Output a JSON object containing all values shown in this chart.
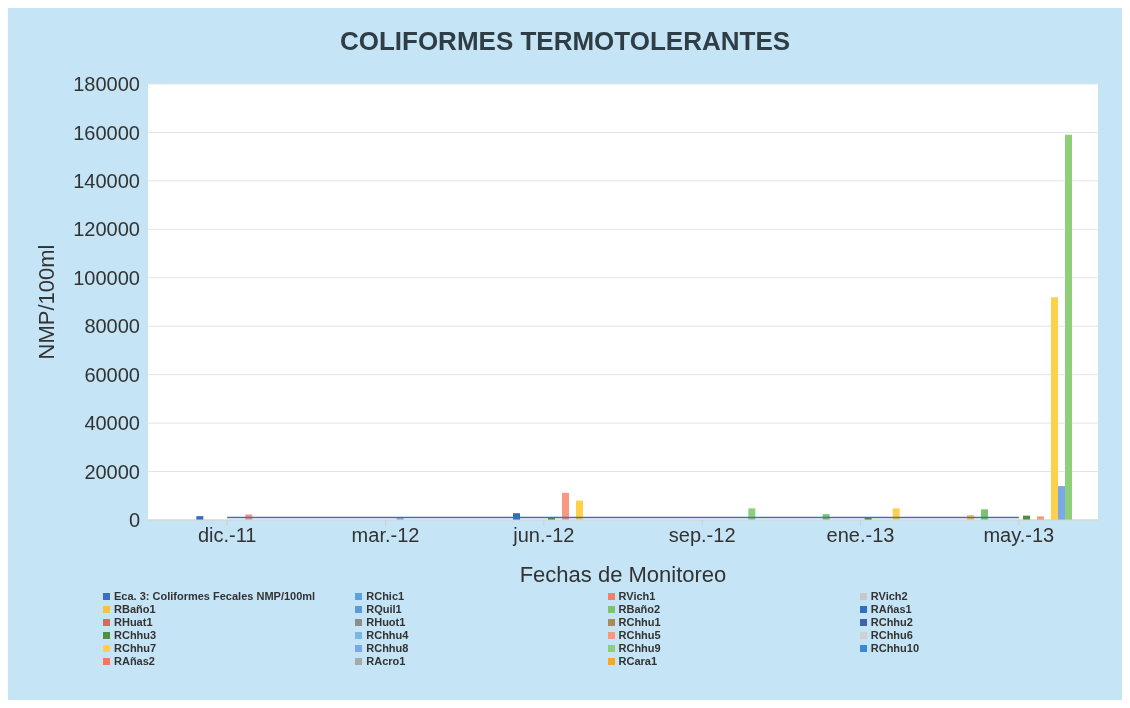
{
  "chart_data": {
    "type": "bar",
    "title": "COLIFORMES TERMOTOLERANTES",
    "xlabel": "Fechas de Monitoreo",
    "ylabel": "NMP/100ml",
    "categories": [
      "dic.-11",
      "mar.-12",
      "jun.-12",
      "sep.-12",
      "ene.-13",
      "may.-13"
    ],
    "ylim": [
      0,
      180000
    ],
    "yticks": [
      0,
      20000,
      40000,
      60000,
      80000,
      100000,
      120000,
      140000,
      160000,
      180000
    ],
    "grid": "y",
    "legend": "bottom",
    "marker": "none",
    "series": [
      {
        "name": "Eca. 3: Coliformes Fecales NMP/100ml",
        "type": "line",
        "color": "#3a6fc4",
        "values": [
          1000,
          1000,
          1000,
          1000,
          1000,
          1000
        ]
      },
      {
        "name": "RChic1",
        "color": "#5ba3e0",
        "values": [
          null,
          null,
          null,
          null,
          null,
          null
        ]
      },
      {
        "name": "RVich1",
        "color": "#f0826a",
        "values": [
          null,
          null,
          null,
          null,
          null,
          null
        ]
      },
      {
        "name": "RVich2",
        "color": "#c8c8c8",
        "values": [
          null,
          null,
          null,
          null,
          null,
          null
        ]
      },
      {
        "name": "RBaño1",
        "color": "#f5c342",
        "values": [
          null,
          null,
          null,
          null,
          null,
          2000
        ]
      },
      {
        "name": "RQuil1",
        "color": "#5b9bd5",
        "values": [
          null,
          null,
          null,
          null,
          null,
          null
        ]
      },
      {
        "name": "RBaño2",
        "color": "#7cc36a",
        "values": [
          null,
          null,
          null,
          null,
          2400,
          4400
        ]
      },
      {
        "name": "RAñas1",
        "color": "#2f6fbf",
        "values": [
          1600,
          null,
          2800,
          null,
          null,
          null
        ]
      },
      {
        "name": "RHuat1",
        "color": "#d96a5a",
        "values": [
          null,
          null,
          null,
          null,
          null,
          null
        ]
      },
      {
        "name": "RHuot1",
        "color": "#8c8c8c",
        "values": [
          null,
          null,
          null,
          null,
          null,
          null
        ]
      },
      {
        "name": "RChhu1",
        "color": "#b08a4a",
        "values": [
          null,
          null,
          null,
          null,
          null,
          null
        ]
      },
      {
        "name": "RChhu2",
        "color": "#3f63a8",
        "values": [
          null,
          null,
          null,
          null,
          null,
          null
        ]
      },
      {
        "name": "RChhu3",
        "color": "#4f8f3f",
        "values": [
          null,
          null,
          1200,
          null,
          1200,
          1800
        ]
      },
      {
        "name": "RChhu4",
        "color": "#7ab8e0",
        "values": [
          null,
          1200,
          null,
          null,
          null,
          null
        ]
      },
      {
        "name": "RChhu5",
        "color": "#f59a80",
        "values": [
          2300,
          null,
          11200,
          null,
          null,
          1500
        ]
      },
      {
        "name": "RChhu6",
        "color": "#d0d0d0",
        "values": [
          null,
          null,
          null,
          null,
          null,
          null
        ]
      },
      {
        "name": "RChhu7",
        "color": "#ffd04a",
        "values": [
          null,
          null,
          8000,
          null,
          4800,
          92000
        ]
      },
      {
        "name": "RChhu8",
        "color": "#7aa8e8",
        "values": [
          null,
          null,
          null,
          null,
          null,
          14000
        ]
      },
      {
        "name": "RChhu9",
        "color": "#8ed07a",
        "values": [
          null,
          null,
          null,
          4800,
          null,
          159000
        ]
      },
      {
        "name": "RChhu10",
        "color": "#3a86d8",
        "values": [
          null,
          null,
          null,
          null,
          null,
          null
        ]
      },
      {
        "name": "RAñas2",
        "color": "#f07860",
        "values": [
          null,
          null,
          null,
          null,
          null,
          null
        ]
      },
      {
        "name": "RAcro1",
        "color": "#a8a8a8",
        "values": [
          null,
          null,
          null,
          null,
          null,
          null
        ]
      },
      {
        "name": "RCara1",
        "color": "#f5a830",
        "values": [
          null,
          null,
          null,
          null,
          null,
          null
        ]
      }
    ]
  }
}
